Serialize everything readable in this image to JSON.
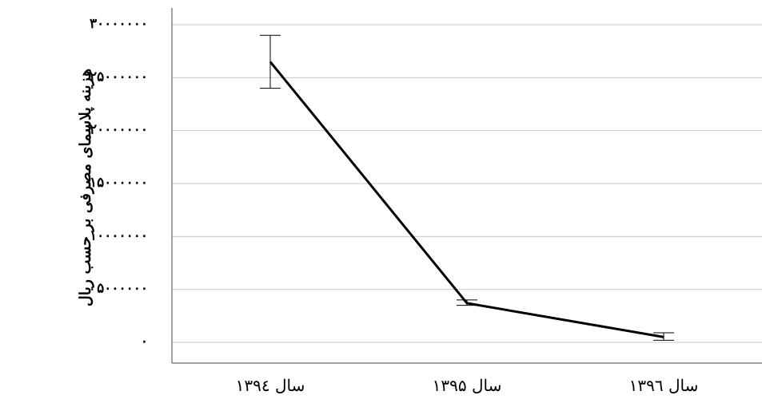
{
  "chart_data": {
    "type": "line",
    "categories": [
      "سال ۱۳۹٤",
      "سال ۱۳۹۵",
      "سال ۱۳۹٦"
    ],
    "series": [
      {
        "values": [
          26500000,
          3700000,
          500000
        ],
        "error_low": [
          24000000,
          3500000,
          200000
        ],
        "error_high": [
          29000000,
          4000000,
          900000
        ]
      }
    ],
    "ylabel": "هزینه پلاسمای مصرفی بر حسب ریال",
    "xlabel": "",
    "ylim": [
      -1000000,
      31000000
    ],
    "y_ticks": [
      0,
      5000000,
      10000000,
      15000000,
      20000000,
      25000000,
      30000000
    ],
    "y_tick_labels": [
      "۰",
      "۵۰۰۰۰۰۰",
      "۱۰۰۰۰۰۰۰",
      "۱۵۰۰۰۰۰۰",
      "۲۰۰۰۰۰۰۰",
      "۲۵۰۰۰۰۰۰",
      "۳۰۰۰۰۰۰۰"
    ],
    "grid": true,
    "legend": "none",
    "line_color": "#000000",
    "grid_color": "#c8c8c8"
  }
}
